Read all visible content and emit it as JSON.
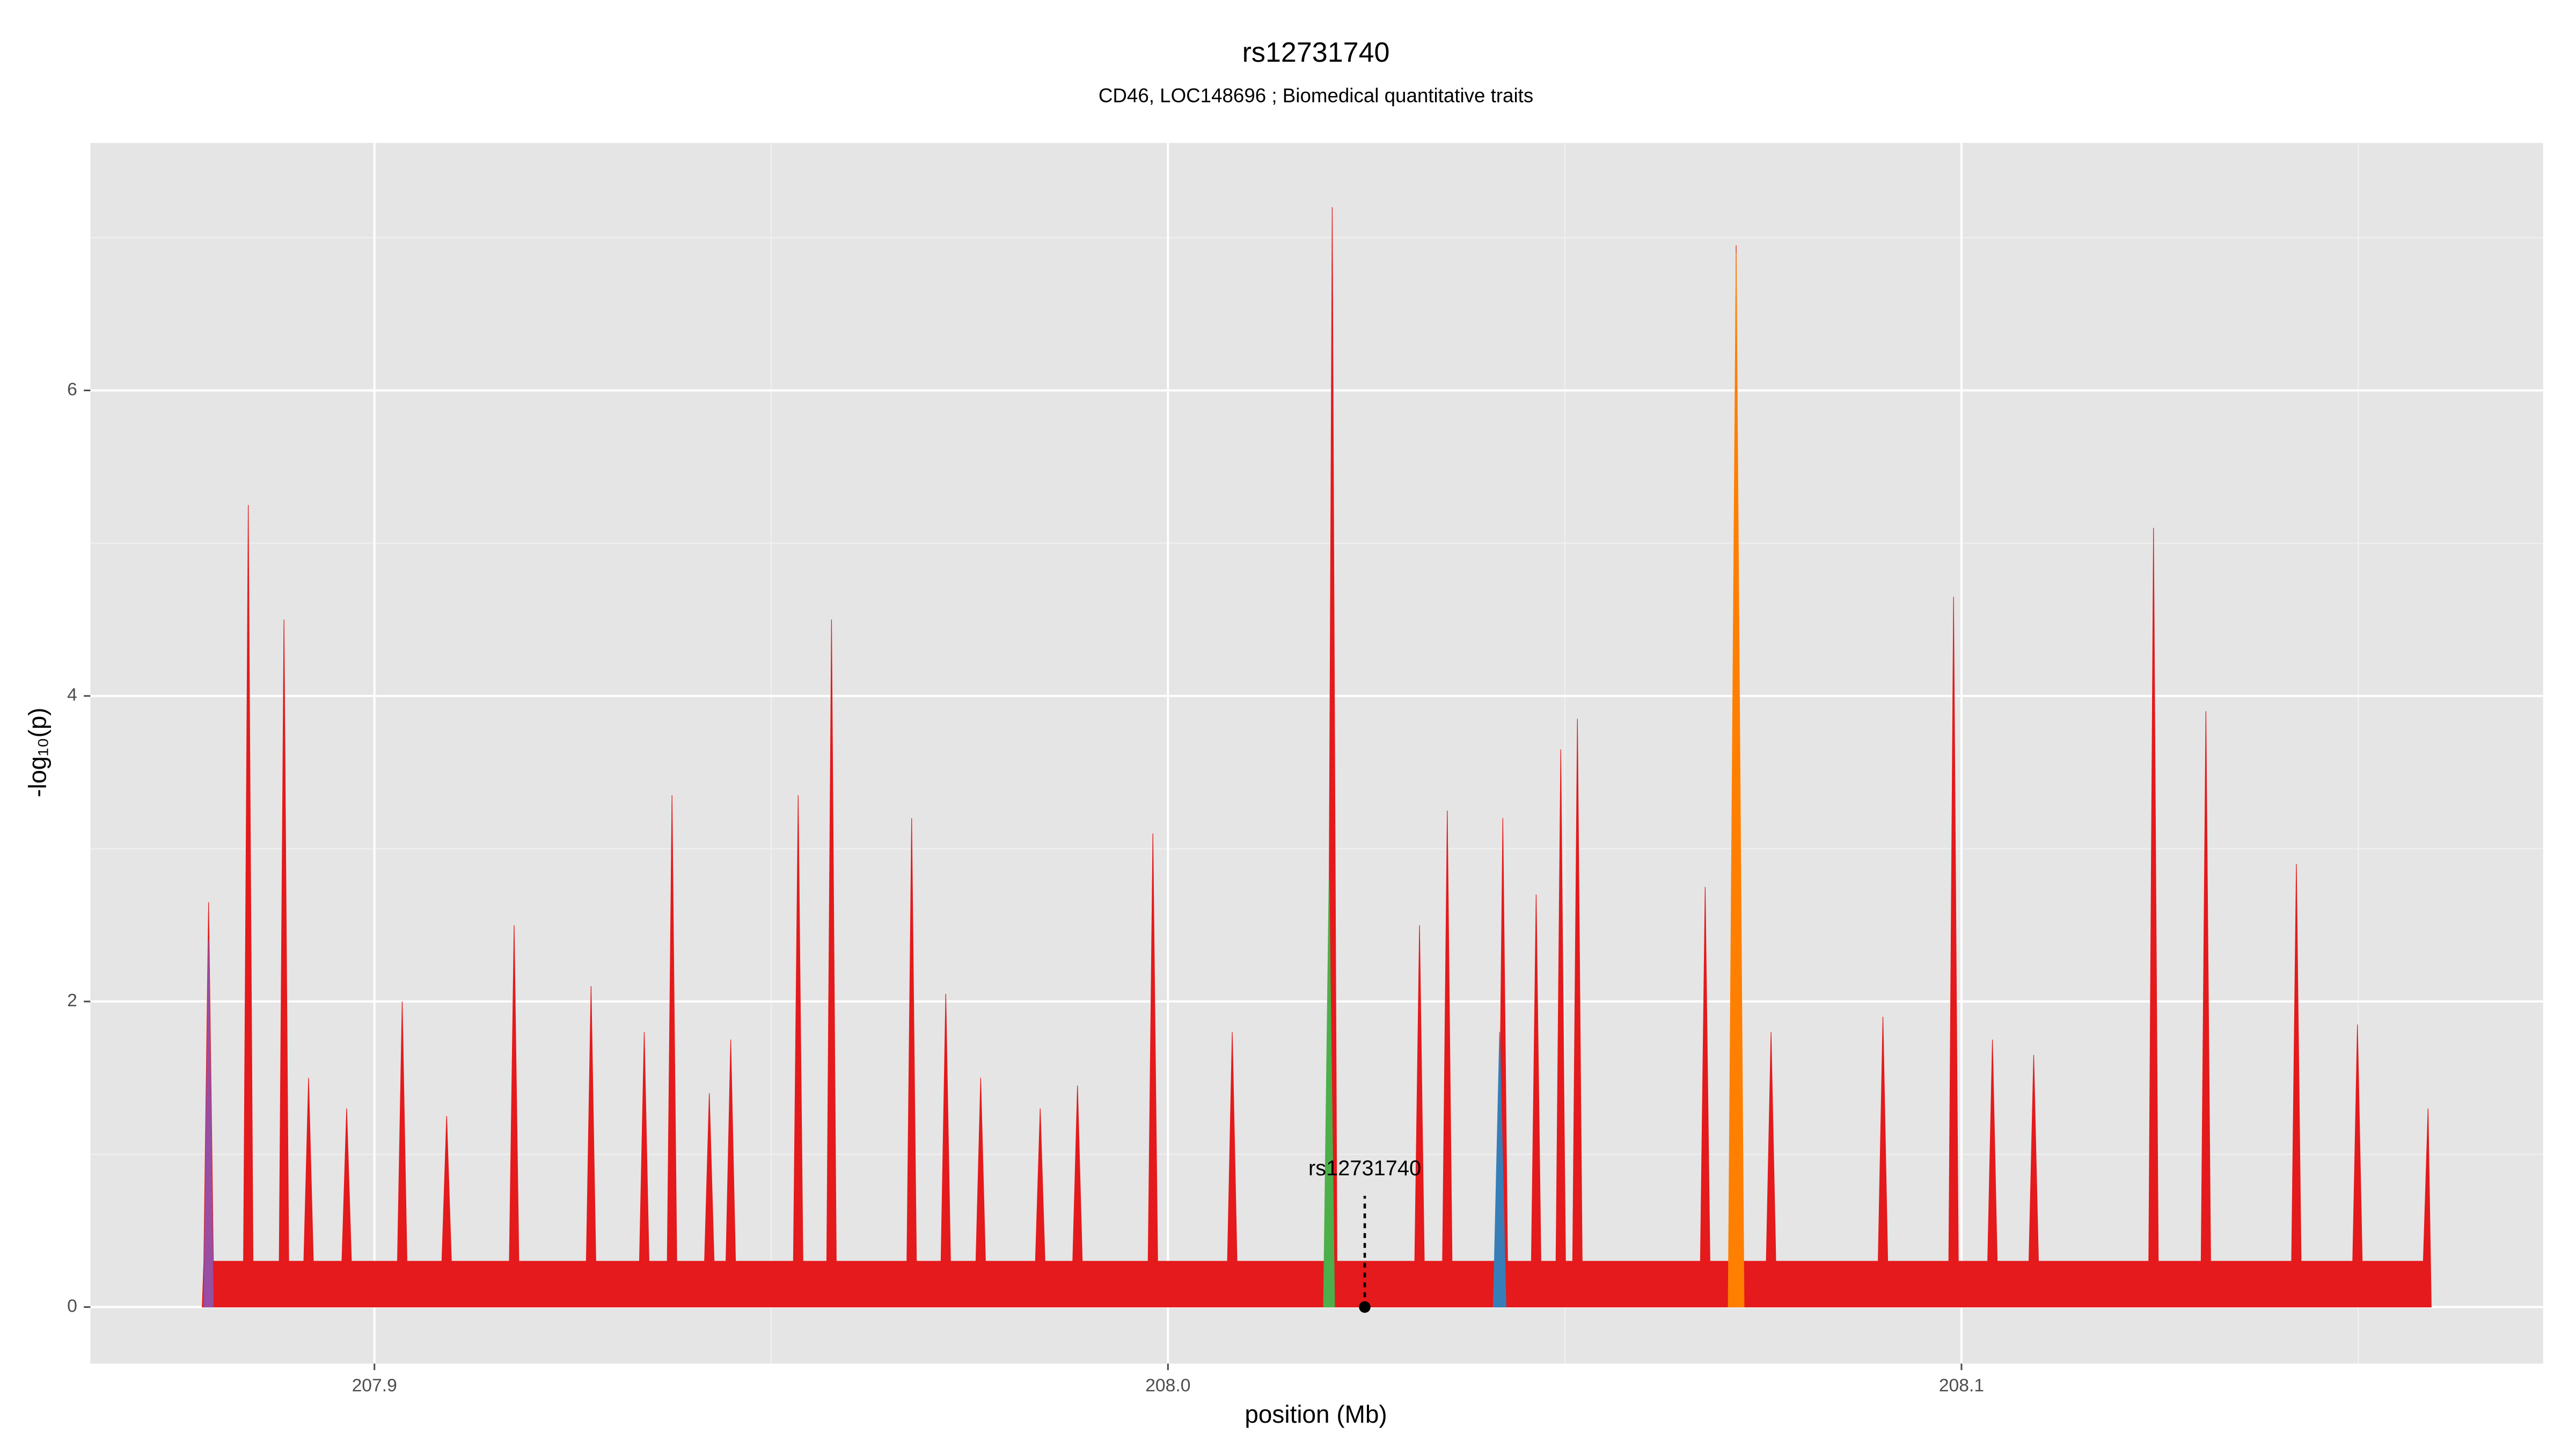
{
  "chart_data": {
    "type": "area",
    "title": "rs12731740",
    "subtitle": "CD46, LOC148696 ; Biomedical quantitative traits",
    "xlabel": "position (Mb)",
    "ylabel": "-log₁₀(p)",
    "xlim": [
      207.8642,
      208.1733
    ],
    "ylim": [
      -0.37,
      7.62
    ],
    "xticks": [
      207.9,
      {
        "value": 208,
        "label": "208.0"
      },
      208.1
    ],
    "yticks": [
      0,
      2,
      4,
      6
    ],
    "xminor": [
      207.95,
      208.05,
      208.15
    ],
    "yminor": [
      1,
      3,
      5,
      7
    ],
    "grid": true,
    "series": [
      {
        "color": "#e41a1c",
        "x": [
          207.8783,
          207.8785,
          207.8791,
          207.8797,
          207.8835,
          207.8841,
          207.8847,
          207.888,
          207.8886,
          207.8892,
          207.8911,
          207.8917,
          207.8923,
          207.8959,
          207.8965,
          207.8971,
          207.9029,
          207.9035,
          207.9041,
          207.9085,
          207.9091,
          207.9097,
          207.917,
          207.9176,
          207.9182,
          207.9267,
          207.9273,
          207.9279,
          207.9334,
          207.934,
          207.9346,
          207.9369,
          207.9375,
          207.9381,
          207.9416,
          207.9422,
          207.9428,
          207.9443,
          207.9449,
          207.9455,
          207.9528,
          207.9534,
          207.954,
          207.957,
          207.9576,
          207.9582,
          207.9671,
          207.9677,
          207.9683,
          207.9714,
          207.972,
          207.9726,
          207.9758,
          207.9764,
          207.977,
          207.9833,
          207.9839,
          207.9845,
          207.988,
          207.9886,
          207.9892,
          207.9975,
          207.9981,
          207.9987,
          208.0075,
          208.0081,
          208.0087,
          208.0201,
          208.0207,
          208.0213,
          208.0311,
          208.0317,
          208.0323,
          208.0346,
          208.0352,
          208.0358,
          208.0416,
          208.0422,
          208.0428,
          208.0458,
          208.0464,
          208.047,
          208.0489,
          208.0495,
          208.0501,
          208.051,
          208.0516,
          208.0522,
          208.0671,
          208.0677,
          208.0683,
          208.071,
          208.0716,
          208.0722,
          208.0754,
          208.076,
          208.0766,
          208.0895,
          208.0901,
          208.0907,
          208.0984,
          208.099,
          208.0996,
          208.1033,
          208.1039,
          208.1045,
          208.1085,
          208.1091,
          208.1097,
          208.1236,
          208.1242,
          208.1248,
          208.1302,
          208.1308,
          208.1314,
          208.1416,
          208.1422,
          208.1428,
          208.1493,
          208.1499,
          208.1505,
          208.1582,
          208.1588,
          208.1592
        ],
        "values": [
          0,
          0.3,
          2.65,
          0.3,
          0.3,
          5.25,
          0.3,
          0.3,
          4.5,
          0.3,
          0.3,
          1.5,
          0.3,
          0.3,
          1.3,
          0.3,
          0.3,
          2.0,
          0.3,
          0.3,
          1.25,
          0.3,
          0.3,
          2.5,
          0.3,
          0.3,
          2.1,
          0.3,
          0.3,
          1.8,
          0.3,
          0.3,
          3.35,
          0.3,
          0.3,
          1.4,
          0.3,
          0.3,
          1.75,
          0.3,
          0.3,
          3.35,
          0.3,
          0.3,
          4.5,
          0.3,
          0.3,
          3.2,
          0.3,
          0.3,
          2.05,
          0.3,
          0.3,
          1.5,
          0.3,
          0.3,
          1.3,
          0.3,
          0.3,
          1.45,
          0.3,
          0.3,
          3.1,
          0.3,
          0.3,
          1.8,
          0.3,
          0.3,
          7.2,
          0.3,
          0.3,
          2.5,
          0.3,
          0.3,
          3.25,
          0.3,
          0.3,
          3.2,
          0.3,
          0.3,
          2.7,
          0.3,
          0.3,
          3.65,
          0.3,
          0.3,
          3.85,
          0.3,
          0.3,
          2.75,
          0.3,
          0.3,
          6.95,
          0.3,
          0.3,
          1.8,
          0.3,
          0.3,
          1.9,
          0.3,
          0.3,
          4.65,
          0.3,
          0.3,
          1.75,
          0.3,
          0.3,
          1.65,
          0.3,
          0.3,
          5.1,
          0.3,
          0.3,
          3.9,
          0.3,
          0.3,
          2.9,
          0.3,
          0.3,
          1.85,
          0.3,
          0.3,
          1.3,
          0
        ]
      },
      {
        "color": "#984ea3",
        "x": [
          207.8785,
          207.8791,
          207.8797
        ],
        "values": [
          0,
          2.4,
          0
        ]
      },
      {
        "color": "#4daf4a",
        "x": [
          208.0196,
          208.0203,
          208.021
        ],
        "values": [
          0,
          2.8,
          0
        ]
      },
      {
        "color": "#377eb8",
        "x": [
          208.041,
          208.0418,
          208.0426
        ],
        "values": [
          0,
          1.8,
          0
        ]
      },
      {
        "color": "#ff7f00",
        "x": [
          208.0706,
          208.0716,
          208.0726
        ],
        "values": [
          0,
          6.9,
          0
        ]
      }
    ],
    "annotations": [
      {
        "text": "rs12731740",
        "x": 208.0248,
        "y": 0.9,
        "point_y": 0
      }
    ]
  }
}
